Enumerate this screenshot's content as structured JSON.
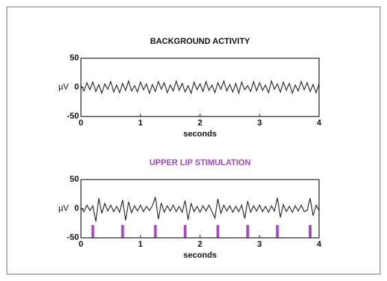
{
  "chart_data": [
    {
      "type": "line",
      "title": "BACKGROUND ACTIVITY",
      "title_color": "#111111",
      "xlabel": "seconds",
      "ylabel": "µV",
      "xlim": [
        0,
        4
      ],
      "xticks": [
        0,
        1,
        2,
        3,
        4
      ],
      "ylim": [
        -50,
        50
      ],
      "yticks": [
        -50,
        0,
        50
      ],
      "series": [
        {
          "color": "#222222",
          "x": [
            0,
            0.05,
            0.1,
            0.15,
            0.2,
            0.25,
            0.3,
            0.35,
            0.4,
            0.45,
            0.5,
            0.55,
            0.6,
            0.65,
            0.7,
            0.75,
            0.8,
            0.85,
            0.9,
            0.95,
            1,
            1.05,
            1.1,
            1.15,
            1.2,
            1.25,
            1.3,
            1.35,
            1.4,
            1.45,
            1.5,
            1.55,
            1.6,
            1.65,
            1.7,
            1.75,
            1.8,
            1.85,
            1.9,
            1.95,
            2,
            2.05,
            2.1,
            2.15,
            2.2,
            2.25,
            2.3,
            2.35,
            2.4,
            2.45,
            2.5,
            2.55,
            2.6,
            2.65,
            2.7,
            2.75,
            2.8,
            2.85,
            2.9,
            2.95,
            3,
            3.05,
            3.1,
            3.15,
            3.2,
            3.25,
            3.3,
            3.35,
            3.4,
            3.45,
            3.5,
            3.55,
            3.6,
            3.65,
            3.7,
            3.75,
            3.8,
            3.85,
            3.9,
            3.95,
            4
          ],
          "values": [
            3,
            -6,
            8,
            -4,
            9,
            -7,
            5,
            -10,
            6,
            -3,
            10,
            -8,
            4,
            -9,
            7,
            -5,
            11,
            -6,
            3,
            -8,
            9,
            -4,
            6,
            -10,
            5,
            -7,
            10,
            -3,
            8,
            -9,
            4,
            -6,
            11,
            -5,
            7,
            -8,
            3,
            -10,
            9,
            -4,
            6,
            -7,
            10,
            -5,
            4,
            -9,
            8,
            -3,
            11,
            -6,
            5,
            -8,
            7,
            -10,
            9,
            -4,
            3,
            -7,
            10,
            -6,
            8,
            -5,
            4,
            -9,
            11,
            -3,
            6,
            -8,
            9,
            -5,
            7,
            -10,
            4,
            -6,
            10,
            -4,
            8,
            -7,
            5,
            -9,
            6
          ]
        }
      ]
    },
    {
      "type": "line",
      "title": "UPPER LIP STIMULATION",
      "title_color": "#a646c4",
      "xlabel": "seconds",
      "ylabel": "µV",
      "xlim": [
        0,
        4
      ],
      "xticks": [
        0,
        1,
        2,
        3,
        4
      ],
      "ylim": [
        -50,
        50
      ],
      "yticks": [
        -50,
        0,
        50
      ],
      "series": [
        {
          "color": "#222222",
          "x": [
            0,
            0.05,
            0.1,
            0.15,
            0.2,
            0.25,
            0.3,
            0.35,
            0.4,
            0.45,
            0.5,
            0.55,
            0.6,
            0.65,
            0.7,
            0.75,
            0.8,
            0.85,
            0.9,
            0.95,
            1,
            1.05,
            1.1,
            1.15,
            1.2,
            1.25,
            1.3,
            1.35,
            1.4,
            1.45,
            1.5,
            1.55,
            1.6,
            1.65,
            1.7,
            1.75,
            1.8,
            1.85,
            1.9,
            1.95,
            2,
            2.05,
            2.1,
            2.15,
            2.2,
            2.25,
            2.3,
            2.35,
            2.4,
            2.45,
            2.5,
            2.55,
            2.6,
            2.65,
            2.7,
            2.75,
            2.8,
            2.85,
            2.9,
            2.95,
            3,
            3.05,
            3.1,
            3.15,
            3.2,
            3.25,
            3.3,
            3.35,
            3.4,
            3.45,
            3.5,
            3.55,
            3.6,
            3.65,
            3.7,
            3.75,
            3.8,
            3.85,
            3.9,
            3.95,
            4
          ],
          "values": [
            2,
            -5,
            6,
            -3,
            5,
            -22,
            18,
            -8,
            9,
            -4,
            6,
            -5,
            4,
            -6,
            15,
            -20,
            12,
            -7,
            5,
            -4,
            6,
            -5,
            4,
            -3,
            5,
            20,
            -18,
            10,
            -6,
            5,
            -4,
            6,
            -5,
            4,
            -6,
            14,
            -19,
            9,
            -5,
            4,
            -6,
            5,
            -4,
            6,
            -5,
            -16,
            17,
            -8,
            6,
            -4,
            5,
            -6,
            4,
            -5,
            6,
            -17,
            13,
            -6,
            5,
            -4,
            6,
            -5,
            4,
            -6,
            5,
            -4,
            19,
            -15,
            7,
            -5,
            4,
            -6,
            5,
            -4,
            6,
            -5,
            -3,
            18,
            -12,
            6,
            -3
          ]
        }
      ],
      "stimuli": {
        "color": "#a646c4",
        "x": [
          0.2,
          0.7,
          1.25,
          1.75,
          2.3,
          2.8,
          3.3,
          3.85
        ],
        "values": [
          -28,
          -28,
          -28,
          -28,
          -28,
          -28,
          -28,
          -28
        ]
      }
    }
  ]
}
